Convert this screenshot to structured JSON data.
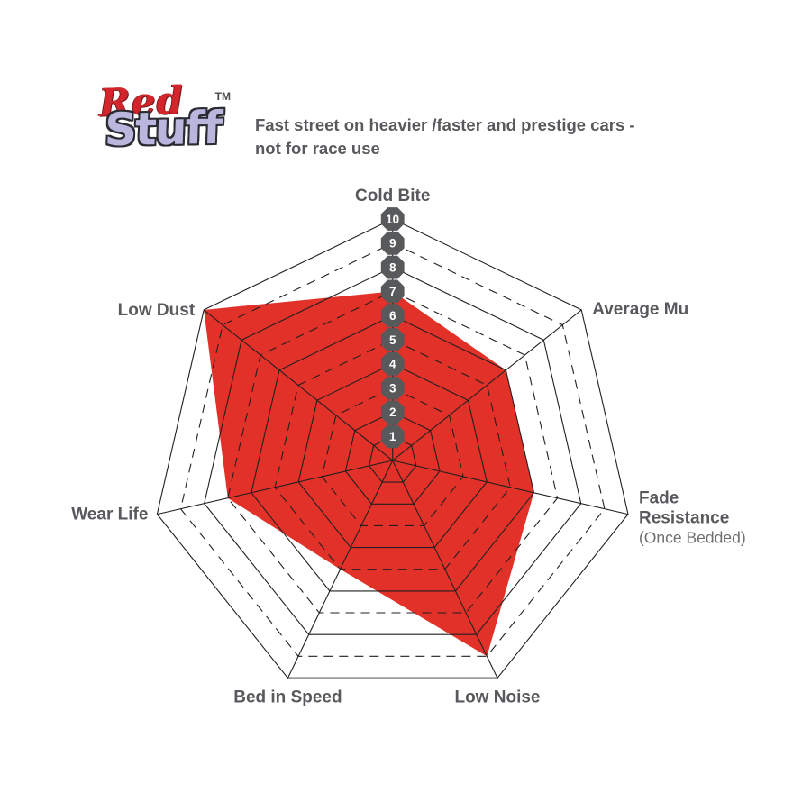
{
  "logo": {
    "word1": "Red",
    "word2": "Stuff",
    "trademark": "TM"
  },
  "header": {
    "description_lines": [
      "Fast street on heavier /faster and prestige cars -",
      "not for race use"
    ]
  },
  "chart_data": {
    "type": "radar",
    "categories": [
      "Cold Bite",
      "Average Mu",
      "Fade Resistance",
      "Low Noise",
      "Bed in Speed",
      "Wear Life",
      "Low Dust"
    ],
    "category_sublabels": [
      "",
      "",
      "(Once Bedded)",
      "",
      "",
      "",
      ""
    ],
    "values": [
      7,
      6,
      6,
      9,
      5,
      7,
      10
    ],
    "scale": {
      "min": 0,
      "max": 10,
      "tick_labels": [
        "1",
        "2",
        "3",
        "4",
        "5",
        "6",
        "7",
        "8",
        "9",
        "10"
      ]
    },
    "grid": {
      "rings": 10,
      "dashed_rings": [
        3,
        5,
        7,
        9
      ],
      "spokes": 7,
      "legend": "none",
      "bottom_edge_gray": true
    },
    "colors": {
      "series_fill": "#e23128",
      "grid_line": "#231f20",
      "bottom_edge": "#9b9b9b",
      "tick_marker_bg": "#58595b",
      "tick_marker_text": "#ffffff",
      "label_color": "#58595c",
      "logo_red": "#d3262c",
      "logo_lavender": "#b9b7dd"
    }
  }
}
